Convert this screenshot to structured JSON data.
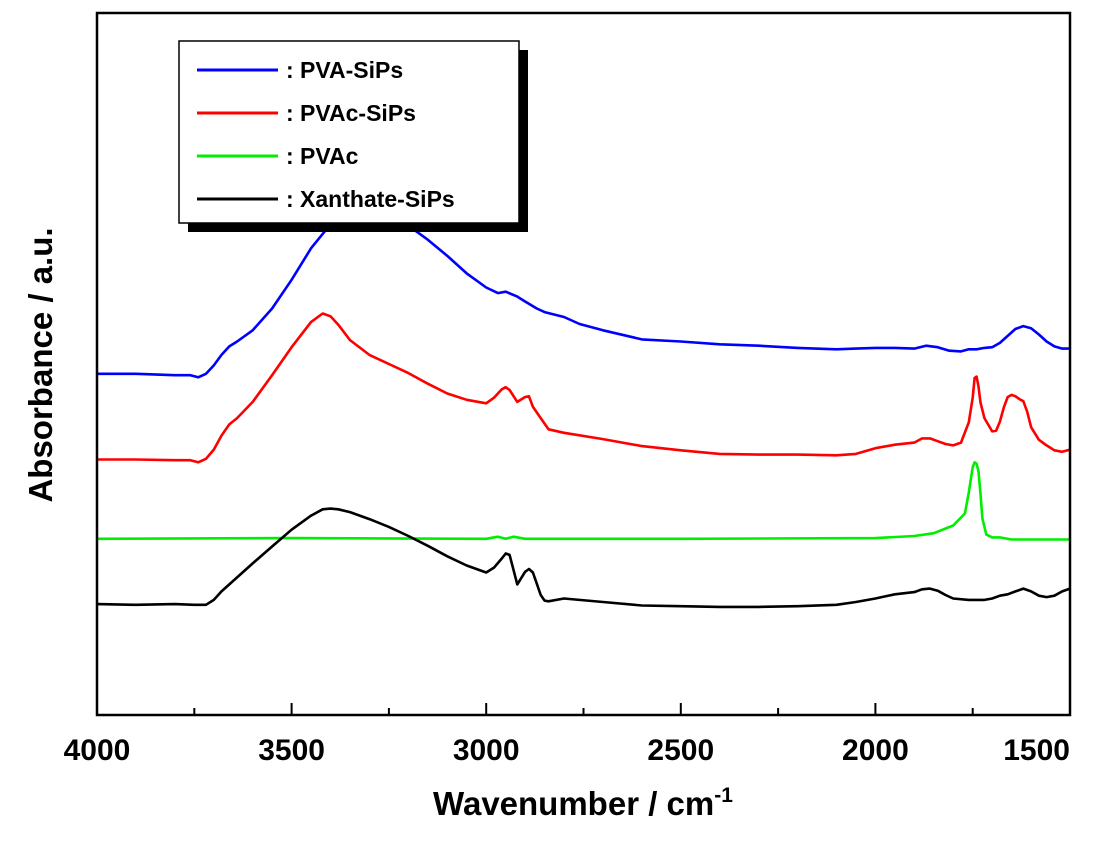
{
  "chart_data": {
    "type": "line",
    "xlabel": "Wavenumber / cm",
    "xlabel_sup": "-1",
    "ylabel": "Absorbance / a.u.",
    "xlim": [
      4000,
      1500
    ],
    "x_reversed": true,
    "ylim": [
      0,
      100
    ],
    "y_ticks_shown": false,
    "grid": false,
    "legend_position": "top-left",
    "x_ticks": [
      4000,
      3500,
      3000,
      2500,
      2000,
      1500
    ],
    "x_tick_labels": [
      "4000",
      "3500",
      "3000",
      "2500",
      "2000",
      "1500"
    ],
    "series": [
      {
        "name": ": PVA-SiPs",
        "color": "#0000ff",
        "x": [
          4000,
          3900,
          3800,
          3760,
          3740,
          3720,
          3700,
          3680,
          3660,
          3640,
          3600,
          3550,
          3500,
          3450,
          3400,
          3350,
          3300,
          3250,
          3200,
          3150,
          3100,
          3050,
          3000,
          2970,
          2950,
          2920,
          2900,
          2870,
          2850,
          2800,
          2760,
          2700,
          2600,
          2500,
          2400,
          2300,
          2200,
          2100,
          2050,
          2000,
          1950,
          1900,
          1870,
          1840,
          1810,
          1780,
          1760,
          1740,
          1720,
          1700,
          1680,
          1660,
          1640,
          1620,
          1600,
          1580,
          1560,
          1540,
          1520,
          1500
        ],
        "values": [
          48.6,
          48.6,
          48.4,
          48.4,
          48.1,
          48.6,
          49.8,
          51.3,
          52.5,
          53.2,
          54.8,
          57.9,
          62.0,
          66.5,
          69.9,
          71.4,
          71.7,
          71.1,
          69.7,
          67.7,
          65.4,
          62.9,
          60.9,
          60.1,
          60.3,
          59.6,
          58.9,
          57.9,
          57.4,
          56.7,
          55.7,
          54.8,
          53.5,
          53.2,
          52.8,
          52.6,
          52.3,
          52.1,
          52.2,
          52.3,
          52.3,
          52.2,
          52.6,
          52.4,
          51.9,
          51.8,
          52.1,
          52.1,
          52.3,
          52.4,
          53.0,
          54.0,
          55.0,
          55.4,
          55.1,
          54.2,
          53.2,
          52.5,
          52.2,
          52.2
        ]
      },
      {
        "name": ": PVAc-SiPs",
        "color": "#ff0000",
        "x": [
          4000,
          3900,
          3800,
          3760,
          3740,
          3720,
          3700,
          3680,
          3660,
          3640,
          3600,
          3550,
          3500,
          3450,
          3420,
          3400,
          3380,
          3350,
          3300,
          3250,
          3200,
          3150,
          3100,
          3050,
          3000,
          2980,
          2960,
          2950,
          2940,
          2920,
          2900,
          2890,
          2880,
          2860,
          2840,
          2800,
          2700,
          2600,
          2500,
          2400,
          2300,
          2200,
          2100,
          2050,
          2000,
          1950,
          1900,
          1880,
          1860,
          1840,
          1820,
          1800,
          1780,
          1760,
          1750,
          1745,
          1740,
          1735,
          1730,
          1720,
          1700,
          1690,
          1680,
          1670,
          1660,
          1650,
          1640,
          1630,
          1620,
          1610,
          1600,
          1580,
          1560,
          1540,
          1520,
          1500
        ],
        "values": [
          36.4,
          36.4,
          36.3,
          36.3,
          36.0,
          36.5,
          37.8,
          39.8,
          41.4,
          42.3,
          44.6,
          48.4,
          52.4,
          56.0,
          57.2,
          56.8,
          55.6,
          53.4,
          51.3,
          50.0,
          48.7,
          47.2,
          45.8,
          44.9,
          44.4,
          45.2,
          46.4,
          46.7,
          46.3,
          44.6,
          45.3,
          45.4,
          43.9,
          42.3,
          40.7,
          40.2,
          39.3,
          38.3,
          37.7,
          37.2,
          37.1,
          37.1,
          37.0,
          37.2,
          38.0,
          38.5,
          38.8,
          39.4,
          39.4,
          39.0,
          38.6,
          38.4,
          38.8,
          41.7,
          45.2,
          48.0,
          48.2,
          46.8,
          44.5,
          42.3,
          40.4,
          40.5,
          41.8,
          43.8,
          45.3,
          45.6,
          45.4,
          45.0,
          44.7,
          43.2,
          41.0,
          39.2,
          38.4,
          37.7,
          37.5,
          37.8
        ]
      },
      {
        "name": ": PVAc",
        "color": "#00ee00",
        "x": [
          4000,
          3500,
          3000,
          2970,
          2950,
          2930,
          2900,
          2500,
          2000,
          1900,
          1850,
          1800,
          1770,
          1760,
          1750,
          1745,
          1740,
          1735,
          1730,
          1725,
          1715,
          1700,
          1680,
          1650,
          1600,
          1500
        ],
        "values": [
          25.1,
          25.2,
          25.1,
          25.4,
          25.1,
          25.4,
          25.1,
          25.1,
          25.2,
          25.5,
          25.9,
          27.0,
          28.7,
          31.7,
          35.3,
          36.0,
          35.8,
          34.7,
          31.5,
          28.0,
          25.7,
          25.3,
          25.3,
          25.0,
          25.0,
          25.0
        ]
      },
      {
        "name": ": Xanthate-SiPs",
        "color": "#000000",
        "x": [
          4000,
          3900,
          3800,
          3750,
          3720,
          3700,
          3680,
          3640,
          3600,
          3550,
          3500,
          3450,
          3420,
          3400,
          3380,
          3350,
          3300,
          3250,
          3200,
          3150,
          3100,
          3050,
          3000,
          2980,
          2960,
          2950,
          2940,
          2920,
          2900,
          2890,
          2880,
          2870,
          2860,
          2850,
          2840,
          2800,
          2700,
          2600,
          2500,
          2400,
          2300,
          2200,
          2100,
          2050,
          2000,
          1950,
          1900,
          1880,
          1860,
          1840,
          1820,
          1800,
          1760,
          1720,
          1700,
          1680,
          1660,
          1640,
          1620,
          1600,
          1580,
          1560,
          1540,
          1520,
          1500
        ],
        "values": [
          15.8,
          15.7,
          15.8,
          15.7,
          15.7,
          16.4,
          17.6,
          19.6,
          21.6,
          24.0,
          26.4,
          28.4,
          29.3,
          29.4,
          29.3,
          28.9,
          27.9,
          26.8,
          25.5,
          24.1,
          22.6,
          21.3,
          20.3,
          21.0,
          22.3,
          23.0,
          22.8,
          18.6,
          20.4,
          20.8,
          20.3,
          18.7,
          17.1,
          16.3,
          16.2,
          16.6,
          16.1,
          15.6,
          15.5,
          15.4,
          15.4,
          15.5,
          15.7,
          16.1,
          16.6,
          17.2,
          17.5,
          17.9,
          18.0,
          17.7,
          17.1,
          16.6,
          16.4,
          16.4,
          16.6,
          17.0,
          17.2,
          17.6,
          18.0,
          17.6,
          17.0,
          16.8,
          17.0,
          17.6,
          18.0
        ]
      }
    ]
  }
}
